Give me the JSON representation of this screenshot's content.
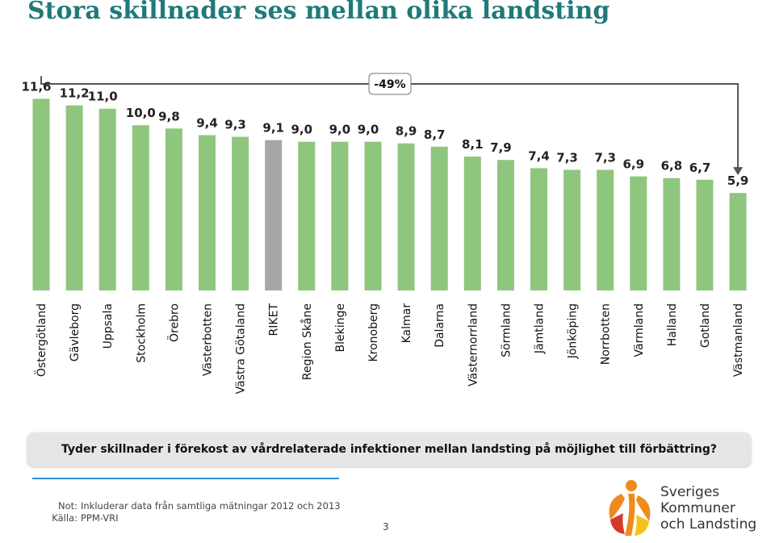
{
  "title": "Stora skillnader ses mellan olika landsting",
  "question": "Tyder skillnader i förekost av vårdrelaterade infektioner mellan landsting på möjlighet till förbättring?",
  "notes": {
    "not_label": "Not:",
    "not_text": "Inkluderar data från samtliga mätningar 2012 och 2013",
    "kalla_label": "Källa:",
    "kalla_text": "PPM-VRI"
  },
  "page_number": "3",
  "logo": {
    "line1": "Sveriges",
    "line2": "Kommuner",
    "line3": "och Landsting",
    "colors": {
      "orange": "#f08a1c",
      "red": "#d23a2a",
      "yellow": "#f5c21b"
    }
  },
  "colors": {
    "bar": "#8fc67e",
    "highlight": "#a6a6a6",
    "bracket": "#555555"
  },
  "chart_data": {
    "type": "bar",
    "categories": [
      "Östergötland",
      "Gävleborg",
      "Uppsala",
      "Stockholm",
      "Örebro",
      "Västerbotten",
      "Västra Götaland",
      "RIKET",
      "Region Skåne",
      "Blekinge",
      "Kronoberg",
      "Kalmar",
      "Dalarna",
      "Västernorrland",
      "Sörmland",
      "Jämtland",
      "Jönköping",
      "Norrbotten",
      "Värmland",
      "Halland",
      "Gotland",
      "Västmanland"
    ],
    "values": [
      11.6,
      11.2,
      11.0,
      10.0,
      9.8,
      9.4,
      9.3,
      9.1,
      9.0,
      9.0,
      9.0,
      8.9,
      8.7,
      8.1,
      7.9,
      7.4,
      7.3,
      7.3,
      6.9,
      6.8,
      6.7,
      5.9
    ],
    "value_labels": [
      "11,6",
      "11,2",
      "11,0",
      "10,0",
      "9,8",
      "9,4",
      "9,3",
      "9,1",
      "9,0",
      "9,0",
      "9,0",
      "8,9",
      "8,7",
      "8,1",
      "7,9",
      "7,4",
      "7,3",
      "7,3",
      "6,9",
      "6,8",
      "6,7",
      "5,9"
    ],
    "highlight_category": "RIKET",
    "annotation": "-49%",
    "ylim": [
      0,
      12.5
    ],
    "grid": false,
    "legend": "none"
  }
}
